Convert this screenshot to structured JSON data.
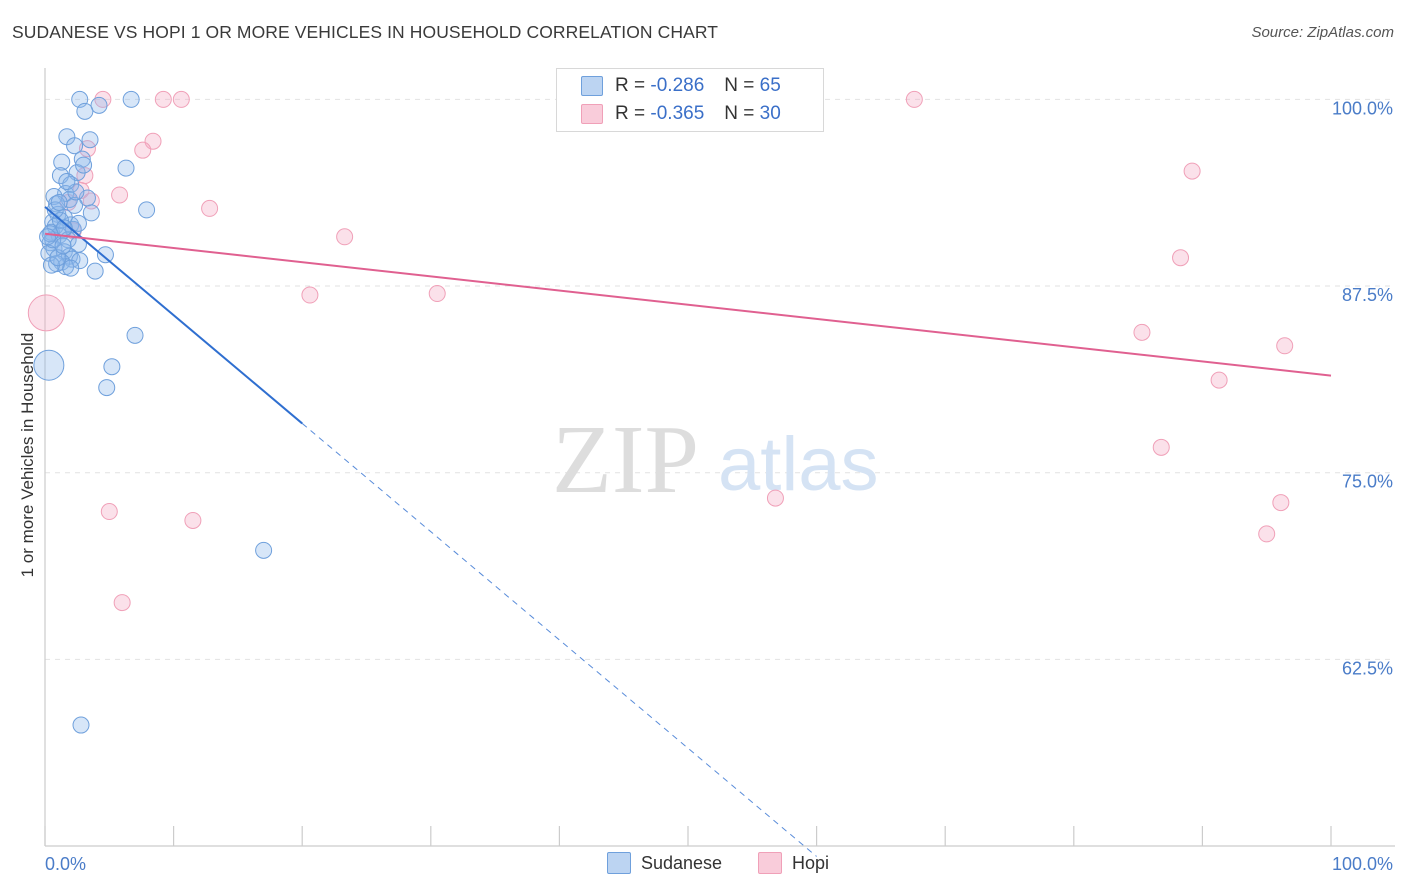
{
  "title": "SUDANESE VS HOPI 1 OR MORE VEHICLES IN HOUSEHOLD CORRELATION CHART",
  "source": "Source: ZipAtlas.com",
  "watermark": {
    "zip": "ZIP",
    "atlas": "atlas"
  },
  "legend": {
    "sudanese": {
      "r_label": "R =",
      "r_value": "-0.286",
      "n_label": "N =",
      "n_value": "65"
    },
    "hopi": {
      "r_label": "R =",
      "r_value": "-0.365",
      "n_label": "N =",
      "n_value": "30"
    }
  },
  "bottom_legend": {
    "sudanese": "Sudanese",
    "hopi": "Hopi"
  },
  "chart_data": {
    "type": "scatter",
    "title": "SUDANESE VS HOPI 1 OR MORE VEHICLES IN HOUSEHOLD CORRELATION CHART",
    "xlabel": "",
    "ylabel": "1 or more Vehicles in Household",
    "xlim": [
      0,
      100
    ],
    "ylim": [
      50.0,
      101.3
    ],
    "x_tick_labels": [
      "0.0%",
      "100.0%"
    ],
    "y_ticks": [
      62.5,
      75.0,
      87.5,
      100.0
    ],
    "y_tick_labels": [
      "62.5%",
      "75.0%",
      "87.5%",
      "100.0%"
    ],
    "colors": {
      "sudanese": "#6fa0dc",
      "sudanese_line": "#2f6fd0",
      "hopi": "#f0a0b8",
      "hopi_line": "#e06090"
    },
    "series": [
      {
        "name": "Sudanese",
        "R": -0.286,
        "N": 65,
        "trend": {
          "x0": 0,
          "y0": 92.8,
          "x1": 20,
          "y1": 78.3,
          "dash_to_x": 60
        },
        "points": [
          [
            2.7,
            100.0
          ],
          [
            6.7,
            100.0
          ],
          [
            4.2,
            99.6
          ],
          [
            3.1,
            99.2
          ],
          [
            1.7,
            97.5
          ],
          [
            3.5,
            97.3
          ],
          [
            2.3,
            96.9
          ],
          [
            2.9,
            96.0
          ],
          [
            1.3,
            95.8
          ],
          [
            6.3,
            95.4
          ],
          [
            2.5,
            95.1
          ],
          [
            1.2,
            94.9
          ],
          [
            2.0,
            94.3
          ],
          [
            1.6,
            93.7
          ],
          [
            0.7,
            93.5
          ],
          [
            3.3,
            93.4
          ],
          [
            1.9,
            93.3
          ],
          [
            0.9,
            93.0
          ],
          [
            2.3,
            92.9
          ],
          [
            7.9,
            92.6
          ],
          [
            1.0,
            92.3
          ],
          [
            1.5,
            92.1
          ],
          [
            0.6,
            91.8
          ],
          [
            2.0,
            91.6
          ],
          [
            0.8,
            91.5
          ],
          [
            2.2,
            91.3
          ],
          [
            1.4,
            91.2
          ],
          [
            0.5,
            91.1
          ],
          [
            1.1,
            90.9
          ],
          [
            1.8,
            90.6
          ],
          [
            0.4,
            90.4
          ],
          [
            2.6,
            90.3
          ],
          [
            0.7,
            90.0
          ],
          [
            1.5,
            89.8
          ],
          [
            0.3,
            89.7
          ],
          [
            1.9,
            89.5
          ],
          [
            4.7,
            89.6
          ],
          [
            2.1,
            89.3
          ],
          [
            1.3,
            89.1
          ],
          [
            2.7,
            89.2
          ],
          [
            1.6,
            88.8
          ],
          [
            0.9,
            89.0
          ],
          [
            3.9,
            88.5
          ],
          [
            2.0,
            88.7
          ],
          [
            0.5,
            88.9
          ],
          [
            1.0,
            89.4
          ],
          [
            0.6,
            90.6
          ],
          [
            1.2,
            91.9
          ],
          [
            0.8,
            92.6
          ],
          [
            2.4,
            93.8
          ],
          [
            1.7,
            94.5
          ],
          [
            3.0,
            95.6
          ],
          [
            0.4,
            91.0
          ],
          [
            1.4,
            90.2
          ],
          [
            2.6,
            91.7
          ],
          [
            1.1,
            93.1
          ],
          [
            7.0,
            84.2
          ],
          [
            5.2,
            82.1
          ],
          [
            0.3,
            82.2
          ],
          [
            4.8,
            80.7
          ],
          [
            17.0,
            69.8
          ],
          [
            2.8,
            58.1
          ],
          [
            1.5,
            91.4
          ],
          [
            0.2,
            90.8
          ],
          [
            3.6,
            92.4
          ]
        ]
      },
      {
        "name": "Hopi",
        "R": -0.365,
        "N": 30,
        "trend": {
          "x0": 0,
          "y0": 91.0,
          "x1": 100,
          "y1": 81.5
        },
        "points": [
          [
            4.5,
            100.0
          ],
          [
            9.2,
            100.0
          ],
          [
            10.6,
            100.0
          ],
          [
            67.6,
            100.0
          ],
          [
            8.4,
            97.2
          ],
          [
            7.6,
            96.6
          ],
          [
            3.3,
            96.7
          ],
          [
            3.1,
            94.9
          ],
          [
            2.8,
            93.9
          ],
          [
            5.8,
            93.6
          ],
          [
            12.8,
            92.7
          ],
          [
            23.3,
            90.8
          ],
          [
            88.3,
            89.4
          ],
          [
            89.2,
            95.2
          ],
          [
            20.6,
            86.9
          ],
          [
            30.5,
            87.0
          ],
          [
            85.3,
            84.4
          ],
          [
            96.4,
            83.5
          ],
          [
            91.3,
            81.2
          ],
          [
            86.8,
            76.7
          ],
          [
            56.8,
            73.3
          ],
          [
            96.1,
            73.0
          ],
          [
            95.0,
            70.9
          ],
          [
            5.0,
            72.4
          ],
          [
            11.5,
            71.8
          ],
          [
            6.0,
            66.3
          ],
          [
            0.1,
            85.7
          ],
          [
            2.2,
            91.2
          ],
          [
            1.8,
            93.1
          ],
          [
            3.6,
            93.2
          ]
        ]
      }
    ]
  }
}
